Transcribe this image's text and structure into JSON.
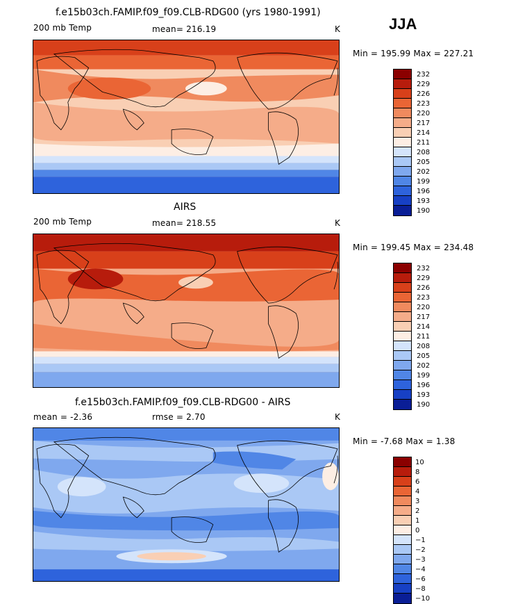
{
  "season": "JJA",
  "panels": [
    {
      "title": "f.e15b03ch.FAMIP.f09_f09.CLB-RDG00 (yrs 1980-1991)",
      "left_label": "200 mb Temp",
      "stat_label": "mean= 216.19",
      "units": "K",
      "minmax": "Min = 195.99 Max = 227.21",
      "colorbar_ticks": [
        "232",
        "229",
        "226",
        "223",
        "220",
        "217",
        "214",
        "211",
        "208",
        "205",
        "202",
        "199",
        "196",
        "193",
        "190"
      ],
      "colors": [
        "#8b0000",
        "#b71c0c",
        "#d8401a",
        "#ea6535",
        "#f08a5e",
        "#f5ac89",
        "#f9cfb4",
        "#fdeee4",
        "#d4e4fb",
        "#aac8f5",
        "#7fa8ee",
        "#5086e6",
        "#2e63dc",
        "#1740c4",
        "#0a1e96"
      ]
    },
    {
      "title": "AIRS",
      "left_label": "200 mb Temp",
      "stat_label": "mean= 218.55",
      "units": "K",
      "minmax": "Min = 199.45 Max = 234.48",
      "colorbar_ticks": [
        "232",
        "229",
        "226",
        "223",
        "220",
        "217",
        "214",
        "211",
        "208",
        "205",
        "202",
        "199",
        "196",
        "193",
        "190"
      ],
      "colors": [
        "#8b0000",
        "#b71c0c",
        "#d8401a",
        "#ea6535",
        "#f08a5e",
        "#f5ac89",
        "#f9cfb4",
        "#fdeee4",
        "#d4e4fb",
        "#aac8f5",
        "#7fa8ee",
        "#5086e6",
        "#2e63dc",
        "#1740c4",
        "#0a1e96"
      ]
    },
    {
      "title": "f.e15b03ch.FAMIP.f09_f09.CLB-RDG00 - AIRS",
      "left_label": "mean =   -2.36",
      "stat_label": "rmse =    2.70",
      "units": "K",
      "minmax": "Min =  -7.68 Max =    1.38",
      "colorbar_ticks": [
        "10",
        "8",
        "6",
        "4",
        "3",
        "2",
        "1",
        "0",
        "−1",
        "−2",
        "−3",
        "−4",
        "−6",
        "−8",
        "−10"
      ],
      "colors": [
        "#8b0000",
        "#b71c0c",
        "#d8401a",
        "#ea6535",
        "#f08a5e",
        "#f5ac89",
        "#f9cfb4",
        "#fdeee4",
        "#d4e4fb",
        "#aac8f5",
        "#7fa8ee",
        "#5086e6",
        "#2e63dc",
        "#1740c4",
        "#0a1e96"
      ]
    }
  ]
}
